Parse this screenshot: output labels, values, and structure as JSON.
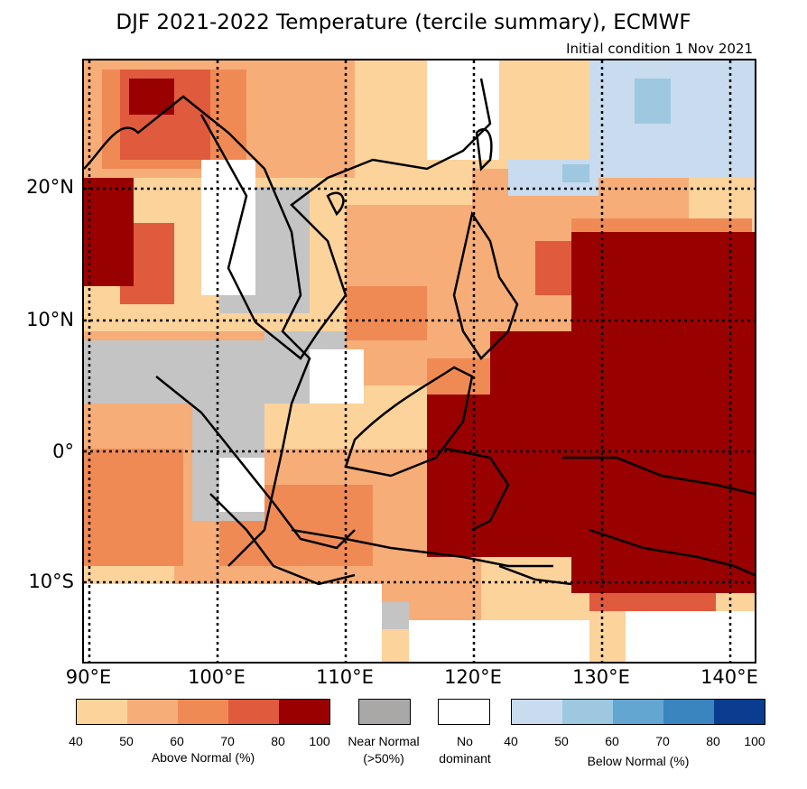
{
  "title": "DJF 2021-2022 Temperature (tercile summary), ECMWF",
  "subtitle": "Initial condition 1 Nov 2021",
  "lat_labels": [
    "20°N",
    "10°N",
    "0°",
    "10°S"
  ],
  "lon_labels": [
    "90°E",
    "100°E",
    "110°E",
    "120°E",
    "130°E",
    "140°E"
  ],
  "colors": {
    "above": [
      "#fbd39b",
      "#f6ad78",
      "#f08a55",
      "#e05a3d",
      "#990000"
    ],
    "below": [
      "#c8dbef",
      "#9dc8e0",
      "#63a6d2",
      "#3a85c0",
      "#0a3c8f"
    ],
    "near": "#aaa7a7",
    "none": "#ffffff"
  },
  "legend": {
    "above_ticks": [
      "40",
      "50",
      "60",
      "70",
      "80",
      "100"
    ],
    "above_label": "Above Normal (%)",
    "near_label": "Near Normal",
    "near_sublabel": "(>50%)",
    "none_label": "No",
    "none_sublabel": "dominant",
    "below_ticks": [
      "40",
      "50",
      "60",
      "70",
      "80",
      "100"
    ],
    "below_label": "Below Normal (%)"
  }
}
